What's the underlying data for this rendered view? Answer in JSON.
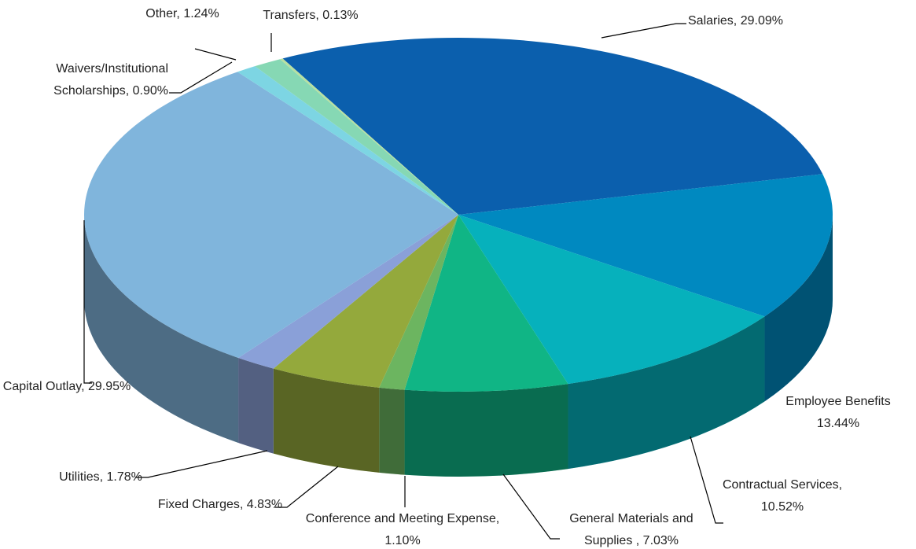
{
  "chart_data": {
    "type": "pie3d",
    "value_labels": [
      "Salaries, 29.09%",
      "Employee Benefits 13.44%",
      "Contractual Services, 10.52%",
      "General Materials and Supplies , 7.03%",
      "Conference and Meeting Expense, 1.10%",
      "Fixed Charges, 4.83%",
      "Utilities, 1.78%",
      "Capital Outlay, 29.95%",
      "Waivers/Institutional Scholarships, 0.90%",
      "Other, 1.24%",
      "Transfers, 0.13%"
    ],
    "values": [
      29.09,
      13.44,
      10.52,
      7.03,
      1.1,
      4.83,
      1.78,
      29.95,
      0.9,
      1.24,
      0.13
    ],
    "colors": [
      "#0b5fad",
      "#0089c0",
      "#06b1bc",
      "#10b585",
      "#6cb560",
      "#94a93c",
      "#8aa0d8",
      "#80b5dc",
      "#7dd5e3",
      "#86d8b4",
      "#b8e0a0"
    ]
  }
}
